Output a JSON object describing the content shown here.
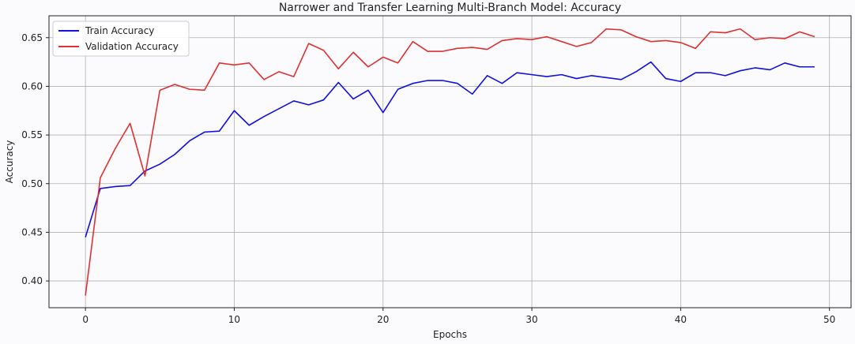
{
  "chart_data": {
    "type": "line",
    "title": "Narrower and Transfer Learning Multi-Branch Model: Accuracy",
    "xlabel": "Epochs",
    "ylabel": "Accuracy",
    "xlim": [
      -2.45,
      51.45
    ],
    "ylim": [
      0.3725,
      0.6725
    ],
    "xticks": [
      0,
      10,
      20,
      30,
      40,
      50
    ],
    "yticks": [
      0.4,
      0.45,
      0.5,
      0.55,
      0.6,
      0.65
    ],
    "grid": true,
    "legend_position": "top-left",
    "x": [
      0,
      1,
      2,
      3,
      4,
      5,
      6,
      7,
      8,
      9,
      10,
      11,
      12,
      13,
      14,
      15,
      16,
      17,
      18,
      19,
      20,
      21,
      22,
      23,
      24,
      25,
      26,
      27,
      28,
      29,
      30,
      31,
      32,
      33,
      34,
      35,
      36,
      37,
      38,
      39,
      40,
      41,
      42,
      43,
      44,
      45,
      46,
      47,
      48,
      49
    ],
    "series": [
      {
        "name": "Train Accuracy",
        "color": "#1010e0",
        "values": [
          0.445,
          0.495,
          0.497,
          0.498,
          0.513,
          0.52,
          0.53,
          0.544,
          0.553,
          0.554,
          0.575,
          0.56,
          0.569,
          0.577,
          0.585,
          0.581,
          0.586,
          0.604,
          0.587,
          0.596,
          0.573,
          0.597,
          0.603,
          0.606,
          0.606,
          0.603,
          0.592,
          0.611,
          0.603,
          0.614,
          0.612,
          0.61,
          0.612,
          0.608,
          0.611,
          0.609,
          0.607,
          0.615,
          0.625,
          0.608,
          0.605,
          0.614,
          0.614,
          0.611,
          0.616,
          0.619,
          0.617,
          0.624,
          0.62,
          0.62
        ]
      },
      {
        "name": "Validation Accuracy",
        "color": "#e03030",
        "values": [
          0.385,
          0.506,
          0.536,
          0.562,
          0.508,
          0.596,
          0.602,
          0.597,
          0.596,
          0.624,
          0.622,
          0.624,
          0.607,
          0.615,
          0.61,
          0.644,
          0.637,
          0.618,
          0.635,
          0.62,
          0.63,
          0.624,
          0.646,
          0.636,
          0.636,
          0.639,
          0.64,
          0.638,
          0.647,
          0.649,
          0.648,
          0.651,
          0.646,
          0.641,
          0.645,
          0.659,
          0.658,
          0.651,
          0.646,
          0.647,
          0.645,
          0.639,
          0.656,
          0.655,
          0.659,
          0.648,
          0.65,
          0.649,
          0.656,
          0.651
        ]
      }
    ]
  }
}
